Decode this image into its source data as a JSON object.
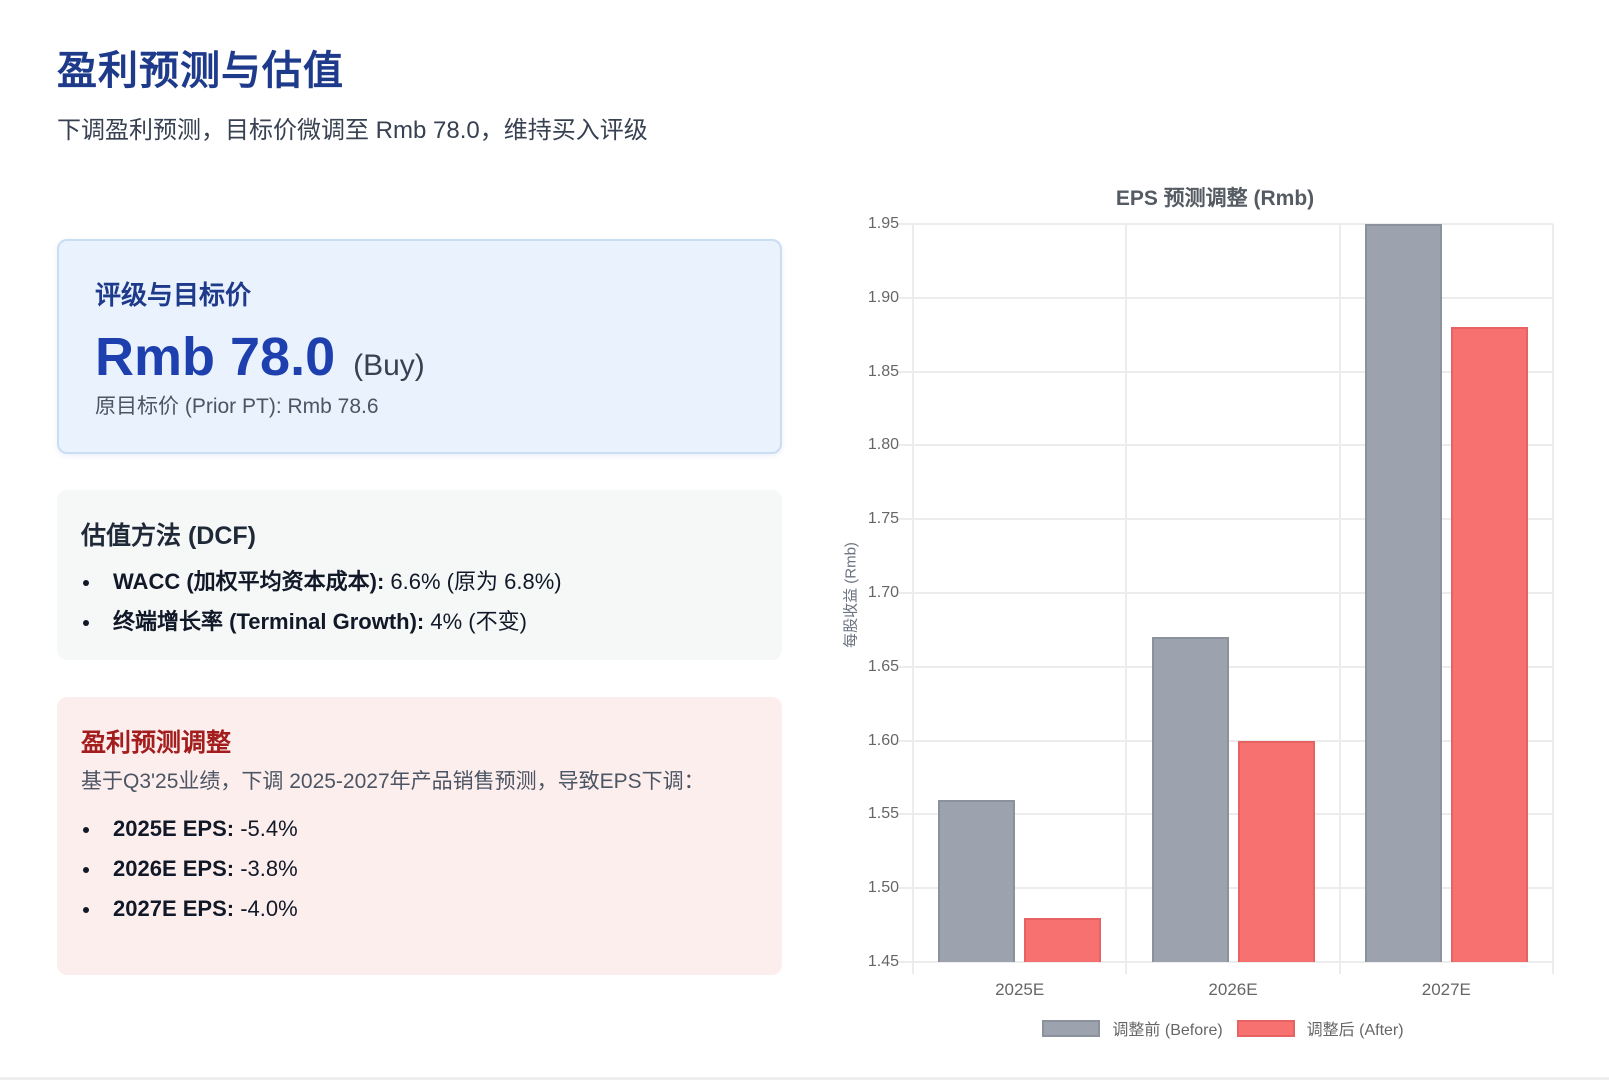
{
  "header": {
    "title": "盈利预测与估值",
    "subtitle": "下调盈利预测，目标价微调至 Rmb 78.0，维持买入评级"
  },
  "rating_card": {
    "label": "评级与目标价",
    "price": "Rmb 78.0",
    "verdict": "(Buy)",
    "prior": "原目标价 (Prior PT): Rmb 78.6"
  },
  "dcf_card": {
    "heading": "估值方法 (DCF)",
    "items": [
      {
        "label": "WACC (加权平均资本成本):",
        "value": " 6.6% (原为 6.8%)"
      },
      {
        "label": "终端增长率 (Terminal Growth):",
        "value": " 4% (不变)"
      }
    ]
  },
  "eps_card": {
    "heading": "盈利预测调整",
    "description": "基于Q3'25业绩，下调 2025-2027年产品销售预测，导致EPS下调：",
    "items": [
      {
        "label": "2025E EPS:",
        "value": " -5.4%"
      },
      {
        "label": "2026E EPS:",
        "value": " -3.8%"
      },
      {
        "label": "2027E EPS:",
        "value": " -4.0%"
      }
    ]
  },
  "colors": {
    "title": "#1e3a8a",
    "price": "#1e40af",
    "eps_heading": "#a31d1d",
    "before": "#9ca3af",
    "after": "#f87171"
  },
  "chart_data": {
    "type": "bar",
    "title": "EPS 预测调整 (Rmb)",
    "xlabel": "",
    "ylabel": "每股收益 (Rmb)",
    "categories": [
      "2025E",
      "2026E",
      "2027E"
    ],
    "series": [
      {
        "name": "调整前 (Before)",
        "values": [
          1.56,
          1.67,
          1.95
        ],
        "color": "#9ca3af"
      },
      {
        "name": "调整后 (After)",
        "values": [
          1.48,
          1.6,
          1.88
        ],
        "color": "#f87171"
      }
    ],
    "ylim": [
      1.45,
      1.95
    ],
    "yticks": [
      "1.95",
      "1.90",
      "1.85",
      "1.80",
      "1.75",
      "1.70",
      "1.65",
      "1.60",
      "1.55",
      "1.50",
      "1.45"
    ],
    "grid": true,
    "legend_position": "bottom"
  }
}
